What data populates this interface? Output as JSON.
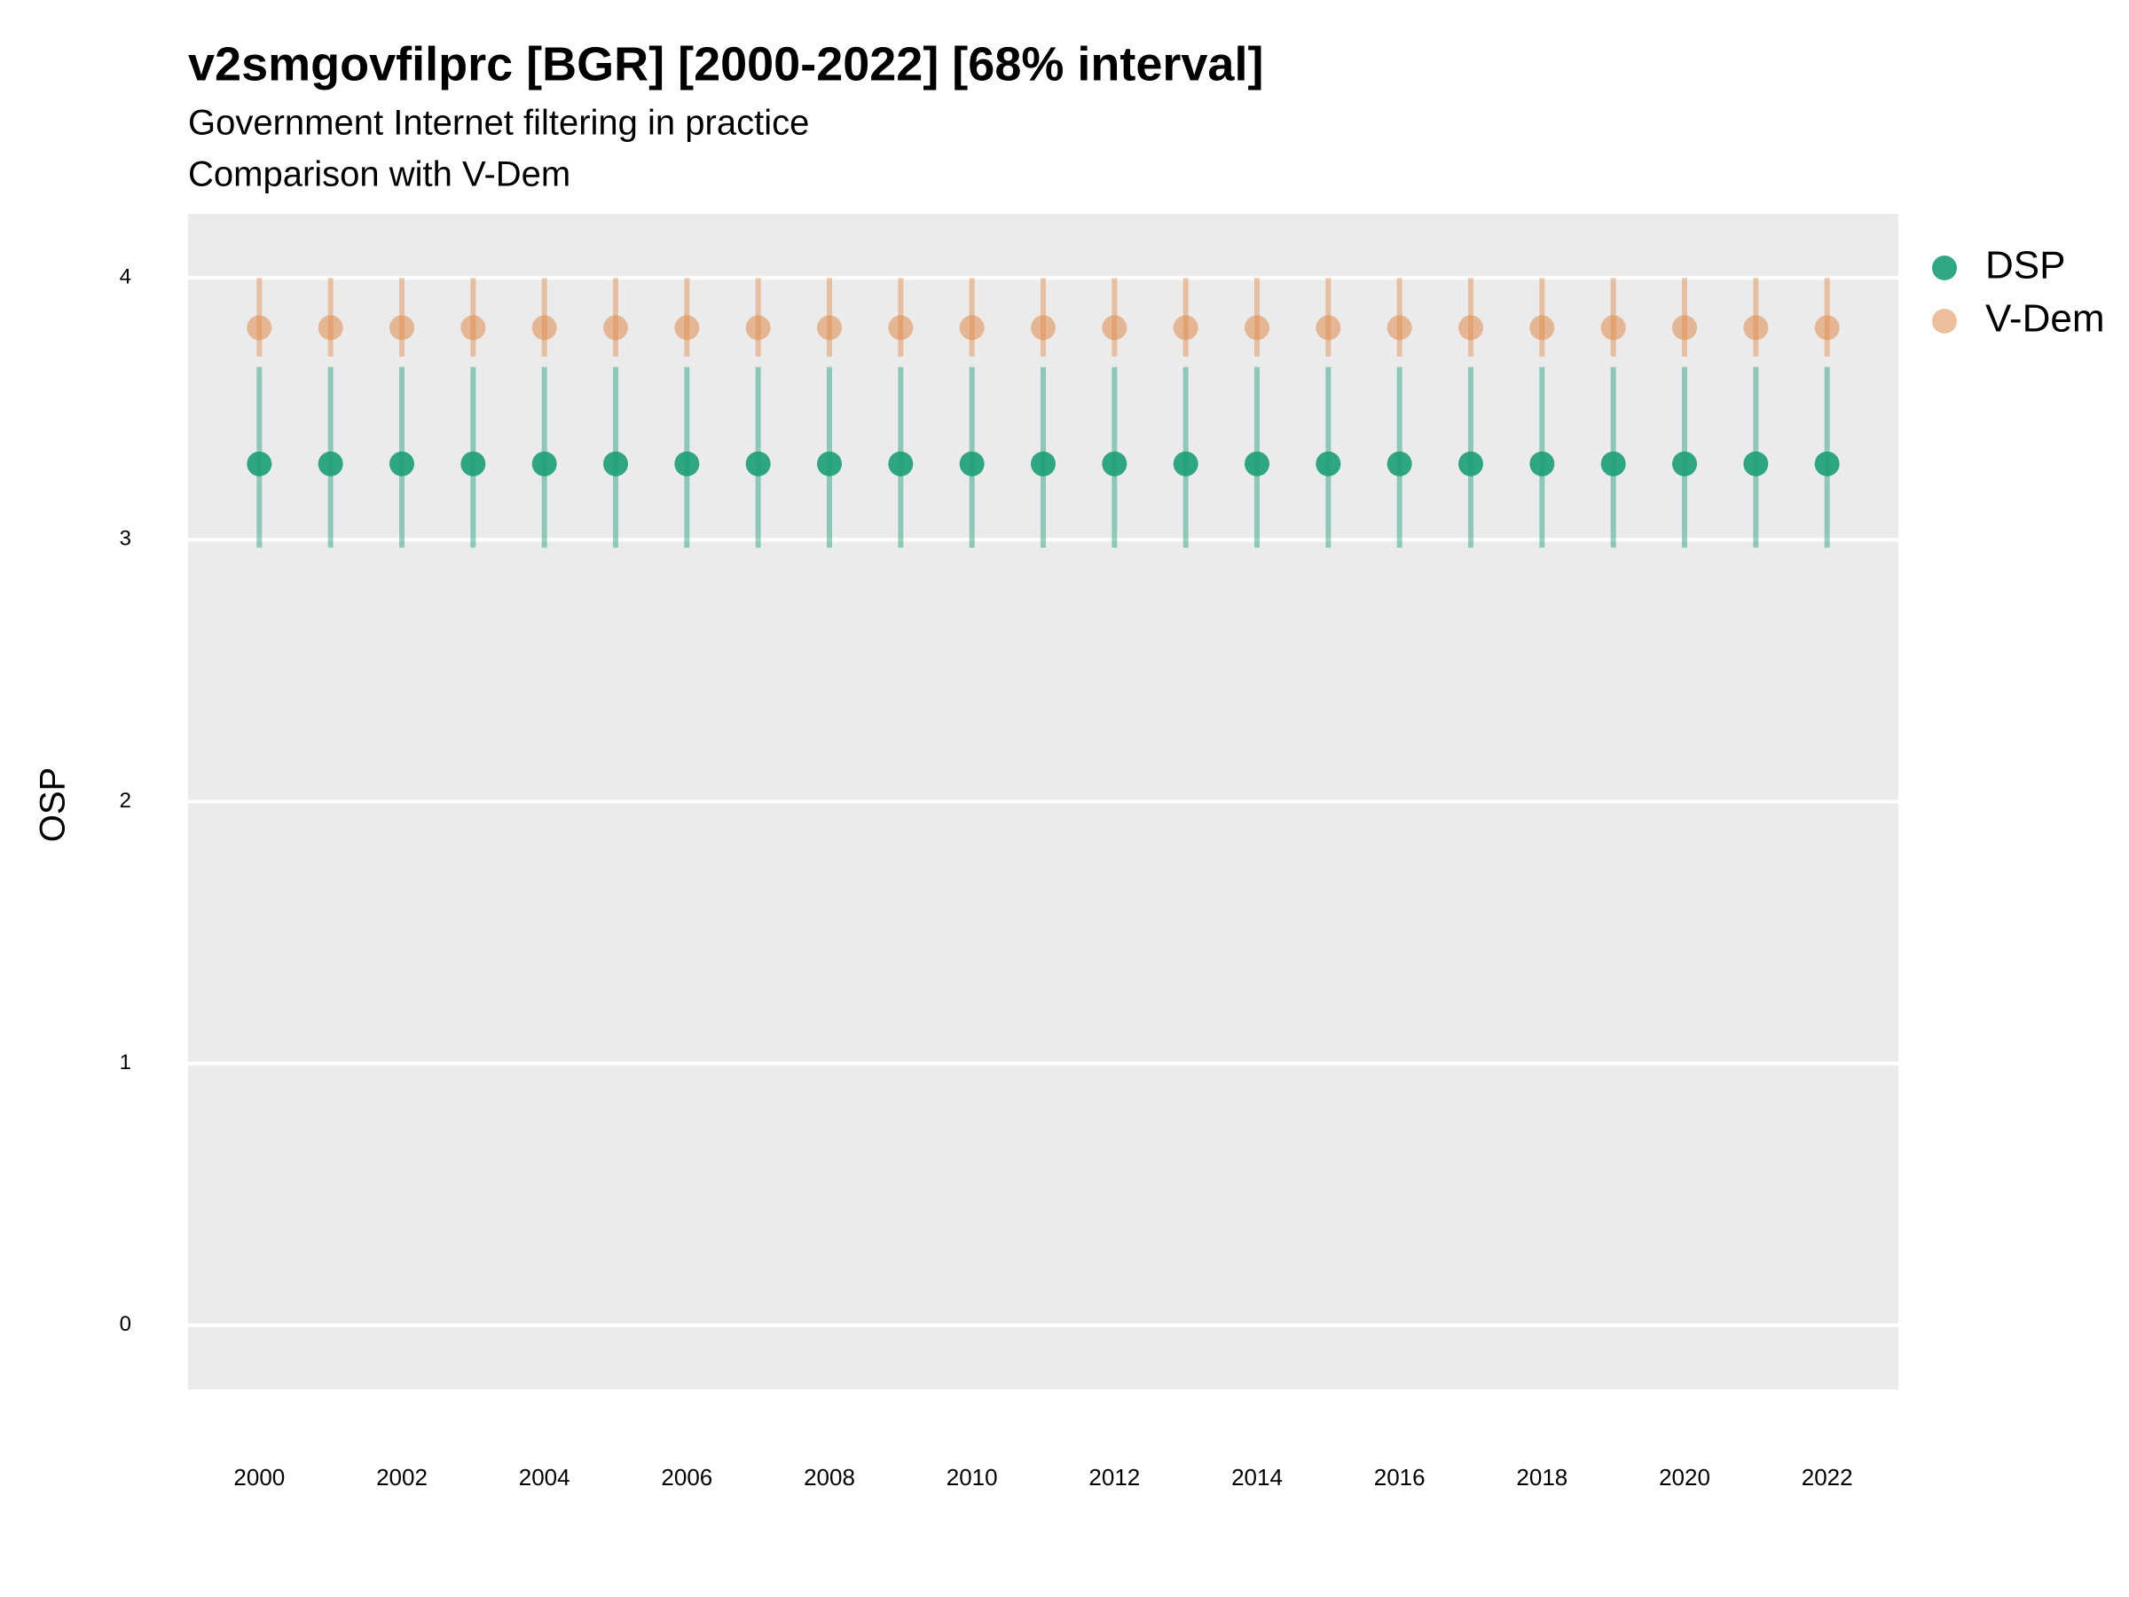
{
  "chart_data": {
    "type": "pointrange",
    "title": "v2smgovfilprc [BGR] [2000-2022] [68% interval]",
    "subtitle": [
      "Government Internet filtering in practice",
      "Comparison with V-Dem"
    ],
    "y_label": "OSP",
    "x": [
      2000,
      2001,
      2002,
      2003,
      2004,
      2005,
      2006,
      2007,
      2008,
      2009,
      2010,
      2011,
      2012,
      2013,
      2014,
      2015,
      2016,
      2017,
      2018,
      2019,
      2020,
      2021,
      2022
    ],
    "series": [
      {
        "name": "DSP",
        "color": "#1b9e77",
        "values": [
          3.29,
          3.29,
          3.29,
          3.29,
          3.29,
          3.29,
          3.29,
          3.29,
          3.29,
          3.29,
          3.29,
          3.29,
          3.29,
          3.29,
          3.29,
          3.29,
          3.29,
          3.29,
          3.29,
          3.29,
          3.29,
          3.29,
          3.29
        ],
        "lower": [
          2.97,
          2.97,
          2.97,
          2.97,
          2.97,
          2.97,
          2.97,
          2.97,
          2.97,
          2.97,
          2.97,
          2.97,
          2.97,
          2.97,
          2.97,
          2.97,
          2.97,
          2.97,
          2.97,
          2.97,
          2.97,
          2.97,
          2.97
        ],
        "upper": [
          3.66,
          3.66,
          3.66,
          3.66,
          3.66,
          3.66,
          3.66,
          3.66,
          3.66,
          3.66,
          3.66,
          3.66,
          3.66,
          3.66,
          3.66,
          3.66,
          3.66,
          3.66,
          3.66,
          3.66,
          3.66,
          3.66,
          3.66
        ]
      },
      {
        "name": "V-Dem",
        "color": "#e08a4a",
        "values": [
          3.81,
          3.81,
          3.81,
          3.81,
          3.81,
          3.81,
          3.81,
          3.81,
          3.81,
          3.81,
          3.81,
          3.81,
          3.81,
          3.81,
          3.81,
          3.81,
          3.81,
          3.81,
          3.81,
          3.81,
          3.81,
          3.81,
          3.81
        ],
        "lower": [
          3.7,
          3.7,
          3.7,
          3.7,
          3.7,
          3.7,
          3.7,
          3.7,
          3.7,
          3.7,
          3.7,
          3.7,
          3.7,
          3.7,
          3.7,
          3.7,
          3.7,
          3.7,
          3.7,
          3.7,
          3.7,
          3.7,
          3.7
        ],
        "upper": [
          4.0,
          4.0,
          4.0,
          4.0,
          4.0,
          4.0,
          4.0,
          4.0,
          4.0,
          4.0,
          4.0,
          4.0,
          4.0,
          4.0,
          4.0,
          4.0,
          4.0,
          4.0,
          4.0,
          4.0,
          4.0,
          4.0,
          4.0
        ]
      }
    ],
    "xlim": [
      1999,
      2023
    ],
    "xticks": [
      2000,
      2002,
      2004,
      2006,
      2008,
      2010,
      2012,
      2014,
      2016,
      2018,
      2020,
      2022
    ],
    "ylim": [
      -0.245,
      4.245
    ],
    "yticks": [
      0,
      1,
      2,
      3,
      4
    ],
    "grid": true,
    "legend": "right"
  }
}
